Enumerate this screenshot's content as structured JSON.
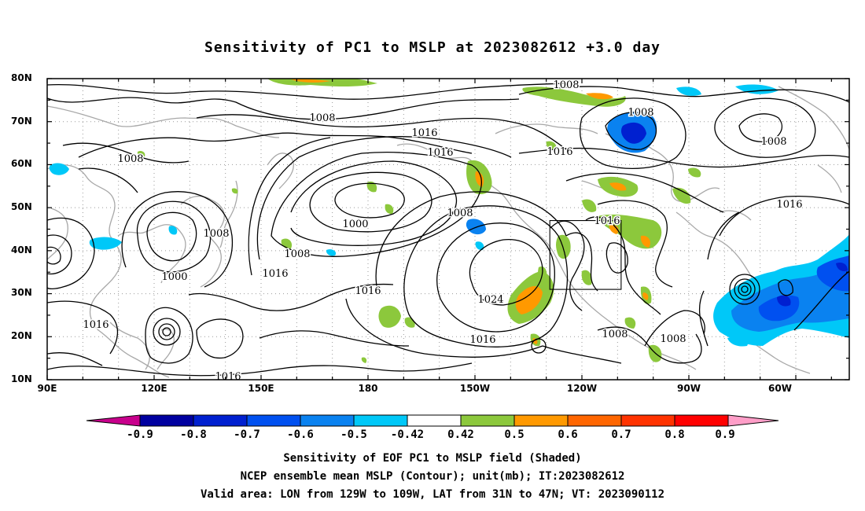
{
  "title": "Sensitivity of PC1 to MSLP at 2023082612 +3.0 day",
  "lat_labels": [
    "80N",
    "70N",
    "60N",
    "50N",
    "40N",
    "30N",
    "20N",
    "10N"
  ],
  "lon_labels": [
    "90E",
    "120E",
    "150E",
    "180",
    "150W",
    "120W",
    "90W",
    "60W"
  ],
  "contour_labels": [
    "1008",
    "1008",
    "1008",
    "1016",
    "1016",
    "1016",
    "1008",
    "1008",
    "1000",
    "1016",
    "1016",
    "1000",
    "1016",
    "1008",
    "1008",
    "1016",
    "1016",
    "1024",
    "1008",
    "1016",
    "1016",
    "1008",
    "1008"
  ],
  "colorbar": {
    "labels": [
      "-0.9",
      "-0.8",
      "-0.7",
      "-0.6",
      "-0.5",
      "-0.42",
      "0.42",
      "0.5",
      "0.6",
      "0.7",
      "0.8",
      "0.9"
    ],
    "colors": [
      "#c8008c",
      "#0000a0",
      "#0020d0",
      "#0050f0",
      "#0a82f0",
      "#00c8f8",
      "#ffffff",
      "#8cc83c",
      "#ff9900",
      "#ff6600",
      "#ff3300",
      "#ff0000",
      "#ff9ec8"
    ]
  },
  "captions": [
    "Sensitivity of EOF PC1 to MSLP field (Shaded)",
    "NCEP ensemble mean MSLP (Contour); unit(mb); IT:2023082612",
    "Valid area: LON from 129W to 109W, LAT from 31N to 47N; VT: 2023090112"
  ],
  "valid_box": {
    "lon_min": -129,
    "lon_max": -109,
    "lat_min": 31,
    "lat_max": 47
  }
}
